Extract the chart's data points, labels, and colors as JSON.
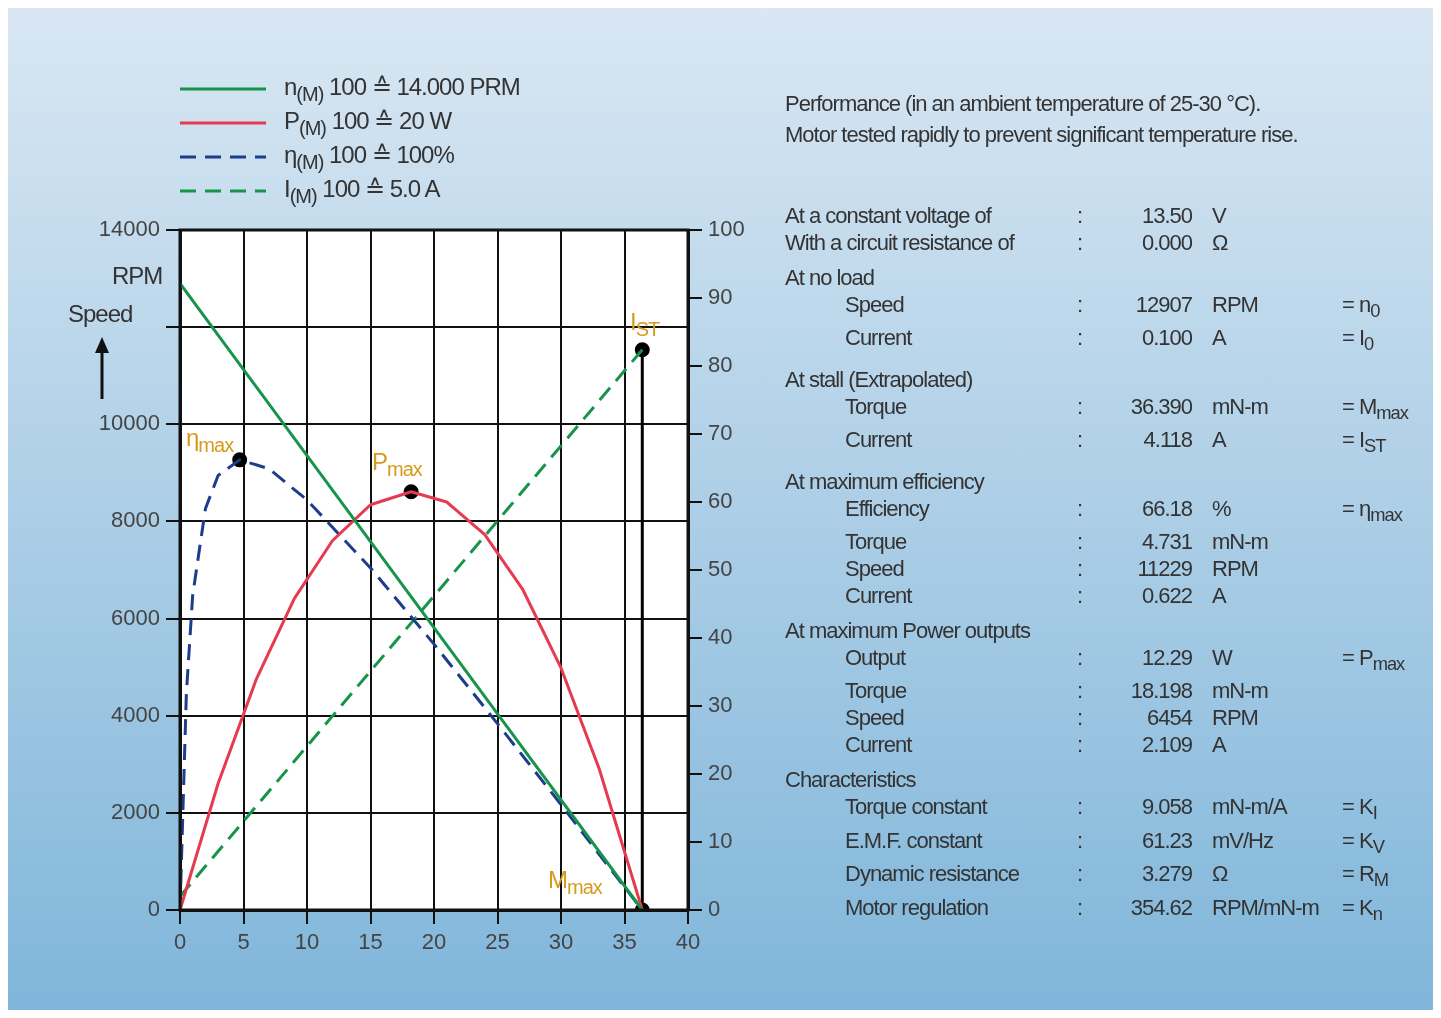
{
  "chart_data": [
    {
      "type": "line",
      "ylabel": "Speed",
      "legend": "top left",
      "grid": true,
      "xlim": [
        0,
        40
      ],
      "xticks": [
        0,
        5,
        10,
        15,
        20,
        25,
        30,
        35,
        40
      ],
      "ylim": [
        0,
        14000
      ],
      "yticks": [
        0,
        2000,
        4000,
        6000,
        8000,
        10000,
        {
          "value": 12000,
          "label": null
        },
        14000
      ],
      "y2lim": [
        0,
        100
      ],
      "y2ticks": [
        0,
        10,
        20,
        30,
        40,
        50,
        60,
        70,
        80,
        90,
        100
      ],
      "annotations": [
        "RPM",
        "η$_{max}$",
        "P$_{max}$",
        "I$_{ST}$",
        "M$_{max}$"
      ],
      "series": [
        {
          "name": "n$_{(M)}$  100 ≙ 14.000 PRM",
          "color": "#15944a",
          "line_style": "solid",
          "x": [
            0,
            36.4
          ],
          "values": [
            12900,
            0
          ]
        },
        {
          "name": "P$_{(M)}$  100 ≙ 20 W",
          "color": "#e63a4e",
          "line_style": "solid",
          "axis": "y2",
          "x": [
            0,
            3,
            6,
            9,
            12,
            15,
            18.2,
            21,
            24,
            27,
            30,
            33,
            36.4
          ],
          "values": [
            0,
            18.6,
            33.9,
            45.8,
            54.3,
            59.6,
            61.5,
            60.0,
            55.2,
            47.1,
            35.6,
            20.8,
            0
          ]
        },
        {
          "name": "η$_{(M)}$  100 ≙ 100%",
          "color": "#1d3c8c",
          "line_style": "dashed",
          "axis": "y2",
          "x": [
            0,
            0.5,
            1,
            2,
            3,
            4.7,
            7,
            10,
            15,
            20,
            25,
            30,
            33,
            36.4
          ],
          "values": [
            0,
            31.8,
            46.3,
            59.0,
            63.9,
            66.2,
            64.9,
            60.3,
            50.3,
            39.1,
            27.4,
            15.5,
            8.2,
            0
          ]
        },
        {
          "name": "I$_{(M)}$  100 ≙ 5.0 A",
          "color": "#15944a",
          "line_style": "dashed",
          "axis": "y2",
          "x": [
            0,
            36.4
          ],
          "values": [
            2,
            82.4
          ]
        },
        {
          "color": "#000000",
          "line_style": "solid",
          "axis": "y2",
          "x": [
            36.4,
            36.4
          ],
          "values": [
            0,
            82.4
          ]
        },
        {
          "type": "scatter",
          "marker": "circle",
          "color": "#000000",
          "axis": "y2",
          "x": [
            4.7,
            18.2,
            36.4,
            36.4
          ],
          "values": [
            66.2,
            61.5,
            82.4,
            0
          ]
        }
      ]
    },
    {
      "type": "other",
      "title": "Performance (in an ambient temperature of 25-30 °C).",
      "subtitle": "Motor tested rapidly to prevent significant temperature rise.",
      "annotations": [
        "At a constant voltage of : 13.50 V",
        "With a circuit resistance of : 0.000 Ω",
        "At no load",
        "Speed : 12907 RPM = n$_{0}$",
        "Current : 0.100 A = I$_{0}$",
        "At stall (Extrapolated)",
        "Torque : 36.390 mN-m = M$_{max}$",
        "Current : 4.118 A = I$_{ST}$",
        "At maximum efficiency",
        "Efficiency : 66.18 % = η$_{max}$",
        "Torque : 4.731 mN-m",
        "Speed : 11229 RPM",
        "Current : 0.622 A",
        "At maximum Power outputs",
        "Output : 12.29 W = P$_{max}$",
        "Torque : 18.198 mN-m",
        "Speed : 6454 RPM",
        "Current : 2.109 A",
        "Characteristics",
        "Torque constant : 9.058 mN-m/A = K$_{I}$",
        "E.M.F. constant : 61.23 mV/Hz = K$_{V}$",
        "Dynamic resistance : 3.279 Ω = R$_{M}$",
        "Motor regulation : 354.62 RPM/mN-m = K$_{n}$"
      ]
    }
  ]
}
